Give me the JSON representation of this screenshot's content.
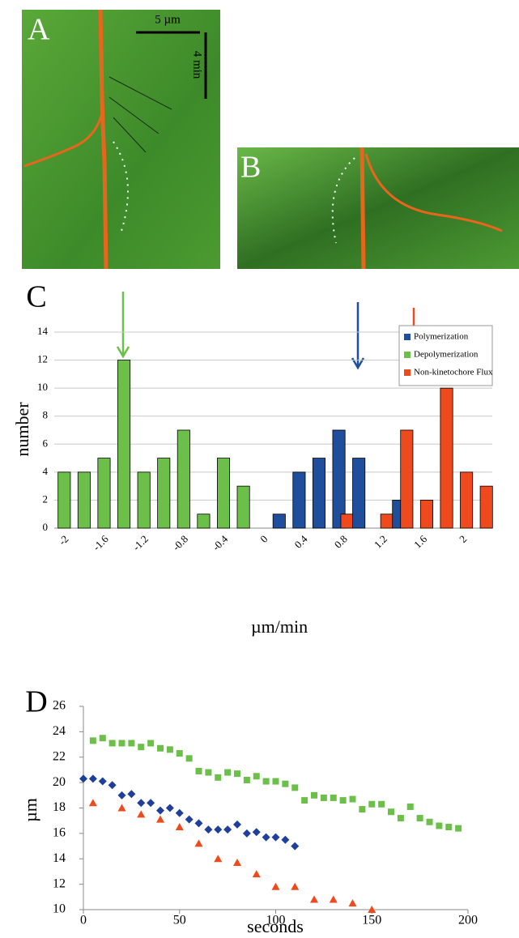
{
  "panels": {
    "a_label": "A",
    "b_label": "B",
    "scale_bar_x": "5 µm",
    "scale_bar_y": "4 min"
  },
  "chart_data": [
    {
      "type": "bar",
      "panel_label": "C",
      "categories": [
        "-2",
        null,
        "-1.6",
        null,
        "-1.2",
        null,
        "-0.8",
        null,
        "-0.4",
        null,
        "0",
        null,
        "0.4",
        null,
        "0.8",
        null,
        "1.2",
        null,
        "1.6",
        null,
        "2",
        null
      ],
      "series": [
        {
          "name": "Polymerization",
          "color": "#1f4e9c",
          "values": [
            null,
            null,
            null,
            null,
            null,
            null,
            null,
            null,
            null,
            null,
            null,
            1,
            4,
            5,
            7,
            5,
            null,
            2,
            null,
            null,
            null,
            null
          ]
        },
        {
          "name": "Depolymerization",
          "color": "#6cc04a",
          "values": [
            4,
            4,
            5,
            12,
            4,
            5,
            7,
            1,
            5,
            3,
            null,
            null,
            null,
            null,
            null,
            null,
            null,
            null,
            null,
            null,
            null,
            null
          ]
        },
        {
          "name": "Non-kinetochore Flux",
          "color": "#ee4a1e",
          "values": [
            null,
            null,
            null,
            null,
            null,
            null,
            null,
            null,
            null,
            null,
            null,
            null,
            null,
            null,
            1,
            null,
            1,
            7,
            2,
            10,
            4,
            3
          ]
        }
      ],
      "ylim": [
        0,
        14
      ],
      "yticks": [
        0,
        2,
        4,
        6,
        8,
        10,
        12,
        14
      ],
      "grid": true,
      "xlabel": "µm/min",
      "ylabel": "number",
      "legend": "top-right"
    },
    {
      "type": "scatter",
      "panel_label": "D",
      "series": [
        {
          "color": "#6cc04a",
          "marker": "square",
          "x": [
            5,
            10,
            15,
            20,
            25,
            30,
            35,
            40,
            45,
            50,
            55,
            60,
            65,
            70,
            75,
            80,
            85,
            90,
            95,
            100,
            105,
            110,
            115,
            120,
            125,
            130,
            135,
            140,
            145,
            150,
            155,
            160,
            165,
            170,
            175,
            180,
            185,
            190,
            195
          ],
          "values": [
            23.3,
            23.5,
            23.1,
            23.1,
            23.1,
            22.8,
            23.1,
            22.7,
            22.6,
            22.3,
            21.9,
            20.9,
            20.8,
            20.4,
            20.8,
            20.7,
            20.2,
            20.5,
            20.1,
            20.1,
            19.9,
            19.6,
            18.6,
            19.0,
            18.8,
            18.8,
            18.6,
            18.7,
            17.9,
            18.3,
            18.3,
            17.7,
            17.2,
            18.1,
            17.2,
            16.9,
            16.6,
            16.5,
            16.4
          ]
        },
        {
          "color": "#1f3f9c",
          "marker": "diamond",
          "x": [
            0,
            5,
            10,
            15,
            20,
            25,
            30,
            35,
            40,
            45,
            50,
            55,
            60,
            65,
            70,
            75,
            80,
            85,
            90,
            95,
            100,
            105,
            110
          ],
          "values": [
            20.3,
            20.3,
            20.1,
            19.8,
            19.0,
            19.1,
            18.4,
            18.4,
            17.8,
            18.0,
            17.6,
            17.1,
            16.8,
            16.3,
            16.3,
            16.3,
            16.7,
            16.0,
            16.1,
            15.7,
            15.7,
            15.5,
            15.0
          ]
        },
        {
          "color": "#ee4a1e",
          "marker": "triangle",
          "x": [
            5,
            20,
            30,
            40,
            50,
            60,
            70,
            80,
            90,
            100,
            110,
            120,
            130,
            140,
            150
          ],
          "values": [
            18.4,
            18.0,
            17.5,
            17.1,
            16.5,
            15.2,
            14.0,
            13.7,
            12.8,
            11.8,
            11.8,
            10.8,
            10.8,
            10.5,
            10.0
          ]
        }
      ],
      "xlim": [
        0,
        200
      ],
      "xticks": [
        0,
        50,
        100,
        150,
        200
      ],
      "ylim": [
        10,
        26
      ],
      "yticks": [
        10,
        12,
        14,
        16,
        18,
        20,
        22,
        24,
        26
      ],
      "grid": false,
      "xlabel": "seconds",
      "ylabel": "µm"
    }
  ]
}
